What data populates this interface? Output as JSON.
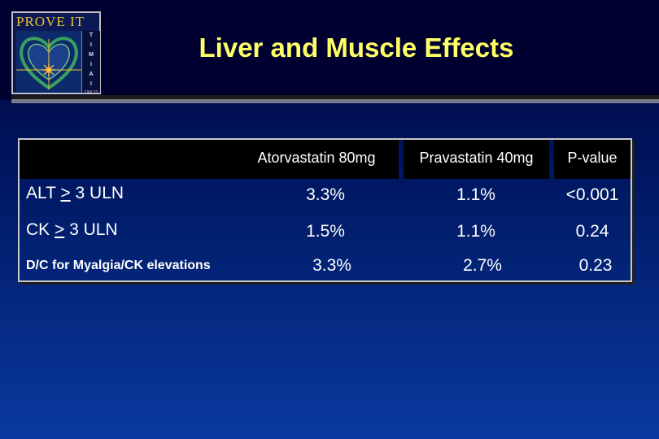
{
  "logo": {
    "title": "PROVE IT",
    "side_letters": [
      "T",
      "I",
      "M",
      "I",
      "A",
      "I"
    ],
    "side_tiny": "TIMI 22"
  },
  "title": "Liver and Muscle Effects",
  "table": {
    "columns": [
      "Atorvastatin 80mg",
      "Pravastatin 40mg",
      "P-value"
    ],
    "rows": [
      {
        "label_pre": "ALT ",
        "label_sym": ">",
        "label_post": " 3 ULN",
        "values": [
          "3.3%",
          "1.1%",
          "<0.001"
        ]
      },
      {
        "label_pre": "CK ",
        "label_sym": ">",
        "label_post": " 3 ULN",
        "values": [
          "1.5%",
          "1.1%",
          "0.24"
        ]
      },
      {
        "label": "D/C for Myalgia/CK elevations",
        "values": [
          "3.3%",
          "2.7%",
          "0.23"
        ]
      }
    ]
  },
  "colors": {
    "title": "#ffff66",
    "background_top": "#00003a",
    "background_bottom": "#0a3aa0",
    "table_text": "#ffffff"
  }
}
